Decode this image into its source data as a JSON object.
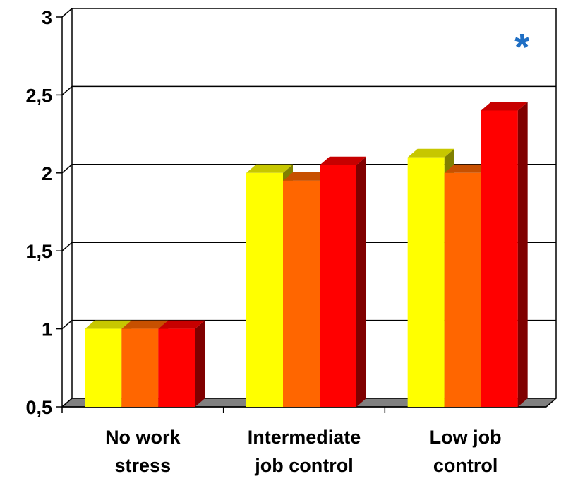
{
  "chart_data": {
    "type": "bar",
    "categories": [
      [
        "No work",
        "stress"
      ],
      [
        "Intermediate",
        "job control"
      ],
      [
        "Low job",
        "control"
      ]
    ],
    "series": [
      {
        "values": [
          1.0,
          2.0,
          2.1
        ],
        "color": "#ffff00"
      },
      {
        "values": [
          1.0,
          1.95,
          2.0
        ],
        "color": "#ff6600"
      },
      {
        "values": [
          1.0,
          2.05,
          2.4
        ],
        "color": "#ff0000"
      }
    ],
    "ylim": [
      0.5,
      3
    ],
    "yticks": [
      "0,5",
      "1",
      "1,5",
      "2",
      "2,5",
      "3"
    ],
    "ytick_values": [
      0.5,
      1,
      1.5,
      2,
      2.5,
      3
    ],
    "grid": true,
    "style": "3d-bar",
    "annotations": [
      {
        "text": "*",
        "category_index": 2,
        "y": 2.85,
        "color": "#1f6fc4"
      }
    ],
    "title": "",
    "xlabel": "",
    "ylabel": ""
  }
}
